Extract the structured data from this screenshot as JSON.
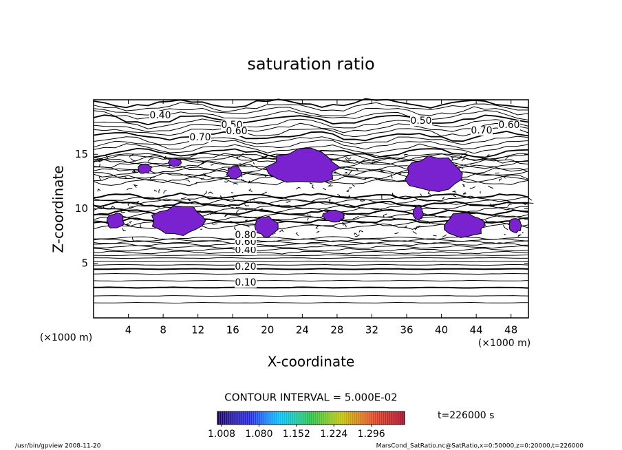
{
  "chart_data": {
    "type": "contour",
    "title": "saturation ratio",
    "x_label": "X-coordinate",
    "y_label": "Z-coordinate",
    "x_unit": "(×1000 m)",
    "xlim": [
      0,
      50
    ],
    "ylim": [
      0,
      20
    ],
    "xticks": [
      4,
      8,
      12,
      16,
      20,
      24,
      28,
      32,
      36,
      40,
      44,
      48
    ],
    "yticks": [
      5,
      10,
      15
    ],
    "contour_labels": [
      {
        "value": 0.4,
        "label": "0.40"
      },
      {
        "value": 0.5,
        "label": "0.50"
      },
      {
        "value": 0.6,
        "label": "0.60"
      },
      {
        "value": 0.7,
        "label": "0.70"
      },
      {
        "value": 0.5,
        "label": "0.50"
      },
      {
        "value": 0.7,
        "label": "0.70"
      },
      {
        "value": 0.6,
        "label": "0.60"
      },
      {
        "value": 0.1,
        "label": "0.10"
      },
      {
        "value": 0.2,
        "label": "0.20"
      },
      {
        "value": 0.4,
        "label": "0.40"
      },
      {
        "value": 0.6,
        "label": "0.60"
      },
      {
        "value": 0.8,
        "label": "0.80"
      }
    ],
    "shade_color": "#7b22d0",
    "contour_interval": "CONTOUR INTERVAL = 5.000E-02",
    "colorbar": {
      "lim": [
        1.0,
        1.36
      ],
      "ticks": [
        {
          "value": 1.008,
          "label": "1.008"
        },
        {
          "value": 1.08,
          "label": "1.080"
        },
        {
          "value": 1.152,
          "label": "1.152"
        },
        {
          "value": 1.224,
          "label": "1.224"
        },
        {
          "value": 1.296,
          "label": "1.296"
        }
      ],
      "colors": [
        "#1a0060",
        "#2020e0",
        "#00c0ff",
        "#20c040",
        "#c0c000",
        "#e04020",
        "#a00020"
      ]
    },
    "time_label": "t=226000 s",
    "footer_left": "/usr/bin/gpview  2008-11-20",
    "footer_right": "MarsCond_SatRatio.nc@SatRatio,x=0:50000,z=0:20000,t=226000"
  }
}
